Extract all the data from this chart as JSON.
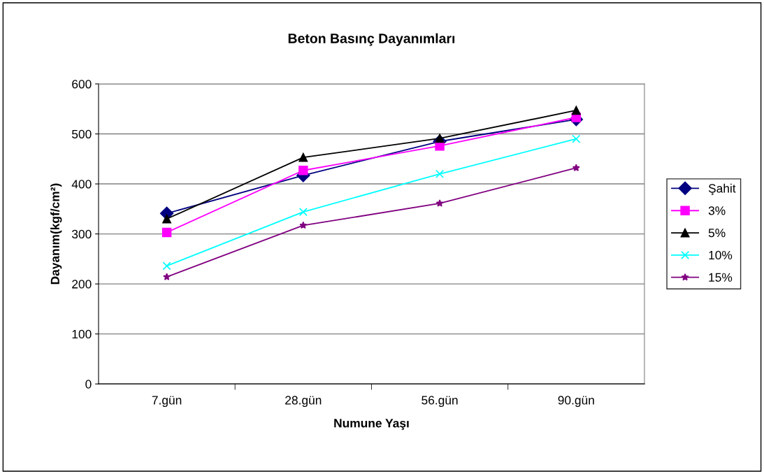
{
  "chart_data": {
    "type": "line",
    "title": "Beton Basınç Dayanımları",
    "xlabel": "Numune Yaşı",
    "ylabel": "Dayanım(kgf/cm²)",
    "categories": [
      "7.gün",
      "28.gün",
      "56.gün",
      "90.gün"
    ],
    "series": [
      {
        "name": "Şahit",
        "color": "#000080",
        "marker": "diamond",
        "values": [
          341,
          417,
          485,
          529
        ]
      },
      {
        "name": "3%",
        "color": "#ff00ff",
        "marker": "square",
        "values": [
          303,
          427,
          476,
          533
        ]
      },
      {
        "name": "5%",
        "color": "#000000",
        "marker": "triangle",
        "values": [
          330,
          453,
          491,
          547
        ]
      },
      {
        "name": "10%",
        "color": "#00ffff",
        "marker": "cross",
        "values": [
          236,
          344,
          420,
          490
        ]
      },
      {
        "name": "15%",
        "color": "#800080",
        "marker": "star",
        "values": [
          214,
          317,
          361,
          432
        ]
      }
    ],
    "ylim": [
      0,
      600
    ],
    "yticks": [
      0,
      100,
      200,
      300,
      400,
      500,
      600
    ],
    "grid": "y",
    "legend": "right",
    "line_style": "solid"
  }
}
